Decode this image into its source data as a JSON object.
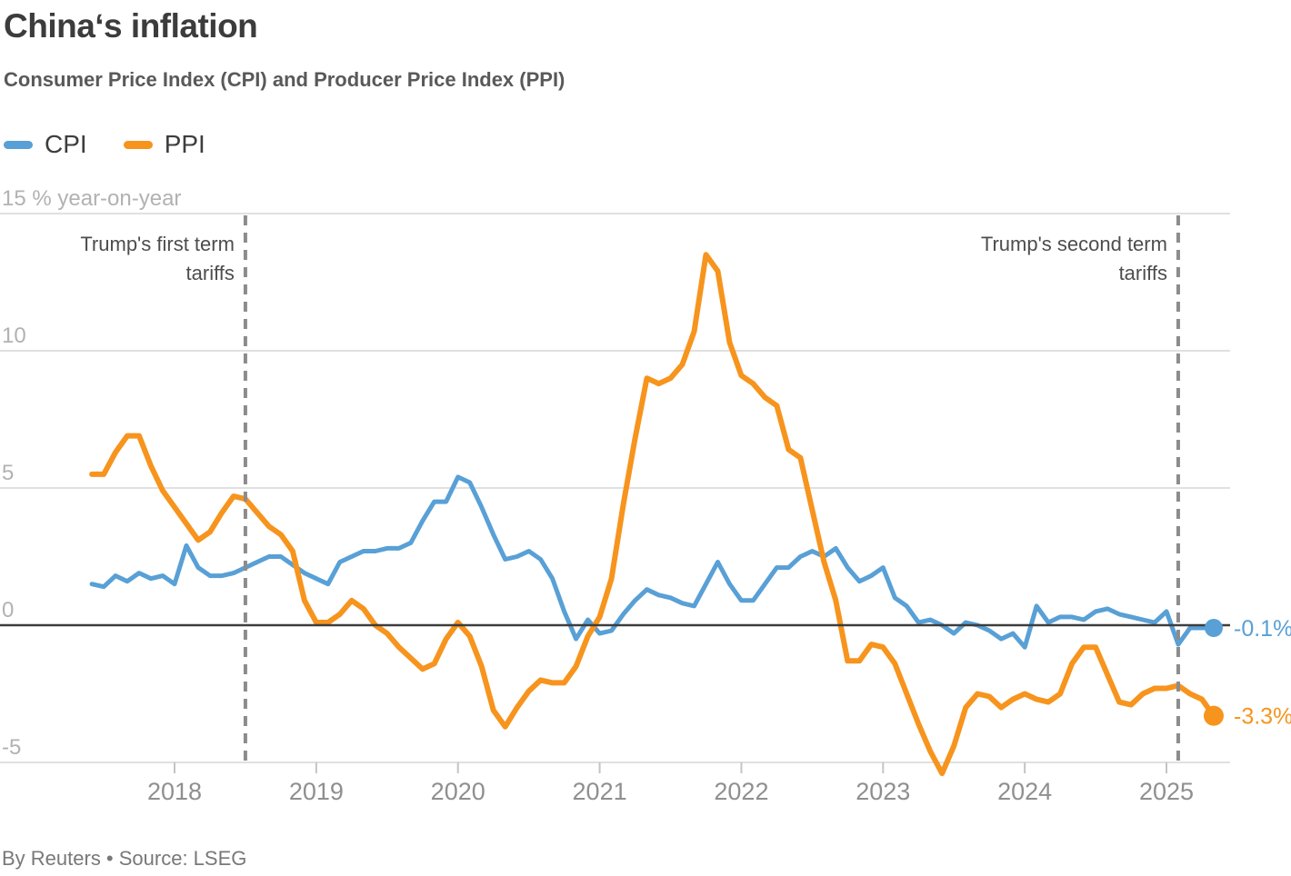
{
  "title": "China‘s inflation",
  "subtitle": "Consumer Price Index (CPI) and Producer Price Index (PPI)",
  "footer": "By Reuters • Source: LSEG",
  "legend": [
    {
      "id": "cpi",
      "label": "CPI",
      "color": "#58a0d6"
    },
    {
      "id": "ppi",
      "label": "PPI",
      "color": "#f7941d"
    }
  ],
  "colors": {
    "cpi": "#58a0d6",
    "ppi": "#f7941d",
    "gridline": "#d6d6d6",
    "zero_line": "#3d3d3d",
    "dashed_line": "#8c8c8c",
    "y_label": "#b2b2b2",
    "x_label": "#8f8f8f",
    "annotation": "#4d4d4d",
    "tick": "#c4c4c4"
  },
  "chart_data": {
    "type": "line",
    "title": "China‘s inflation",
    "subtitle": "Consumer Price Index (CPI) and Producer Price Index (PPI)",
    "xlabel": "",
    "ylabel": "% year-on-year",
    "grid": true,
    "legend_position": "top-left",
    "x_start": {
      "year": 2017,
      "month": 6
    },
    "x_end": {
      "year": 2025,
      "month": 5
    },
    "x_frequency": "monthly",
    "x_tick_years": [
      2018,
      2019,
      2020,
      2021,
      2022,
      2023,
      2024,
      2025
    ],
    "ylim": [
      -6.5,
      15.5
    ],
    "yticks": [
      {
        "value": 15,
        "label": "15 % year-on-year"
      },
      {
        "value": 10,
        "label": "10"
      },
      {
        "value": 5,
        "label": "5"
      },
      {
        "value": 0,
        "label": "0"
      },
      {
        "value": -5,
        "label": "-5"
      }
    ],
    "series": [
      {
        "name": "CPI",
        "color": "#58a0d6",
        "stroke_width": 5,
        "end_label": "-0.1%",
        "values": [
          1.5,
          1.4,
          1.8,
          1.6,
          1.9,
          1.7,
          1.8,
          1.5,
          2.9,
          2.1,
          1.8,
          1.8,
          1.9,
          2.1,
          2.3,
          2.5,
          2.5,
          2.2,
          1.9,
          1.7,
          1.5,
          2.3,
          2.5,
          2.7,
          2.7,
          2.8,
          2.8,
          3.0,
          3.8,
          4.5,
          4.5,
          5.4,
          5.2,
          4.3,
          3.3,
          2.4,
          2.5,
          2.7,
          2.4,
          1.7,
          0.5,
          -0.5,
          0.2,
          -0.3,
          -0.2,
          0.4,
          0.9,
          1.3,
          1.1,
          1.0,
          0.8,
          0.7,
          1.5,
          2.3,
          1.5,
          0.9,
          0.9,
          1.5,
          2.1,
          2.1,
          2.5,
          2.7,
          2.5,
          2.8,
          2.1,
          1.6,
          1.8,
          2.1,
          1.0,
          0.7,
          0.1,
          0.2,
          0.0,
          -0.3,
          0.1,
          0.0,
          -0.2,
          -0.5,
          -0.3,
          -0.8,
          0.7,
          0.1,
          0.3,
          0.3,
          0.2,
          0.5,
          0.6,
          0.4,
          0.3,
          0.2,
          0.1,
          0.5,
          -0.7,
          -0.1,
          -0.1,
          -0.1
        ]
      },
      {
        "name": "PPI",
        "color": "#f7941d",
        "stroke_width": 6,
        "end_label": "-3.3%",
        "values": [
          5.5,
          5.5,
          6.3,
          6.9,
          6.9,
          5.8,
          4.9,
          4.3,
          3.7,
          3.1,
          3.4,
          4.1,
          4.7,
          4.6,
          4.1,
          3.6,
          3.3,
          2.7,
          0.9,
          0.1,
          0.1,
          0.4,
          0.9,
          0.6,
          0.0,
          -0.3,
          -0.8,
          -1.2,
          -1.6,
          -1.4,
          -0.5,
          0.1,
          -0.4,
          -1.5,
          -3.1,
          -3.7,
          -3.0,
          -2.4,
          -2.0,
          -2.1,
          -2.1,
          -1.5,
          -0.4,
          0.3,
          1.7,
          4.4,
          6.8,
          9.0,
          8.8,
          9.0,
          9.5,
          10.7,
          13.5,
          12.9,
          10.3,
          9.1,
          8.8,
          8.3,
          8.0,
          6.4,
          6.1,
          4.2,
          2.3,
          0.9,
          -1.3,
          -1.3,
          -0.7,
          -0.8,
          -1.4,
          -2.5,
          -3.6,
          -4.6,
          -5.4,
          -4.4,
          -3.0,
          -2.5,
          -2.6,
          -3.0,
          -2.7,
          -2.5,
          -2.7,
          -2.8,
          -2.5,
          -1.4,
          -0.8,
          -0.8,
          -1.8,
          -2.8,
          -2.9,
          -2.5,
          -2.3,
          -2.3,
          -2.2,
          -2.5,
          -2.7,
          -3.3
        ]
      }
    ],
    "annotations": [
      {
        "id": "first-term",
        "lines": [
          "Trump's first term",
          "tariffs"
        ],
        "x_year": 2018.5
      },
      {
        "id": "second-term",
        "lines": [
          "Trump's second term",
          "tariffs"
        ],
        "x_year": 2025.083
      }
    ],
    "vlines": [
      {
        "id": "first-term-tariffs-line",
        "x_year": 2018.5,
        "style": "dashed"
      },
      {
        "id": "second-term-tariffs-line",
        "x_year": 2025.083,
        "style": "dashed"
      }
    ]
  }
}
